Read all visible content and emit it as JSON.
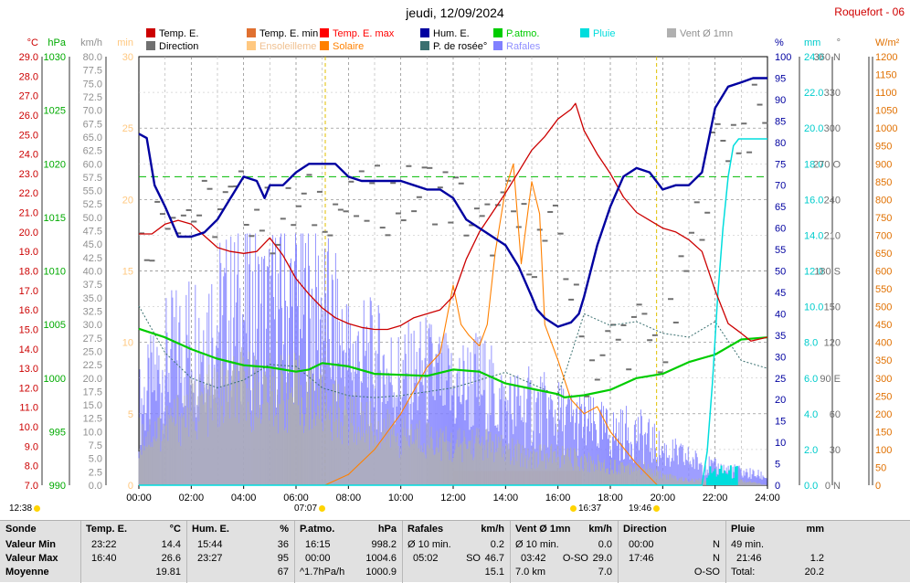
{
  "header": {
    "title": "jeudi, 12/09/2024",
    "station": "Roquefort - 06"
  },
  "legend": [
    {
      "label": "Temp. E.",
      "color": "#cc0000"
    },
    {
      "label": "Temp. E. min",
      "color": "#e07030"
    },
    {
      "label": "Temp. E. max",
      "color": "#ff0000"
    },
    {
      "label": "Hum. E.",
      "color": "#0000a0"
    },
    {
      "label": "P.atmo.",
      "color": "#00cc00"
    },
    {
      "label": "Pluie",
      "color": "#00dddd"
    },
    {
      "label": "Vent Ø 1mn",
      "color": "#b0b0b0"
    },
    {
      "label": "Direction",
      "color": "#707070"
    },
    {
      "label": "Ensoleilleme",
      "color": "#ffc880"
    },
    {
      "label": "Solaire",
      "color": "#ff8000"
    },
    {
      "label": "P. de rosée°",
      "color": "#3a7070"
    },
    {
      "label": "Rafales",
      "color": "#8080ff"
    }
  ],
  "sun_markers": {
    "left": "12:38",
    "sunrise": "07:07",
    "noon": "16:37",
    "sunset": "19:46"
  },
  "chart_data": {
    "type": "line",
    "x_unit": "time of day",
    "x_ticks": [
      "00:00",
      "02:00",
      "04:00",
      "06:00",
      "08:00",
      "10:00",
      "12:00",
      "14:00",
      "16:00",
      "18:00",
      "20:00",
      "22:00",
      "24:00"
    ],
    "axes": [
      {
        "unit": "°C",
        "range": [
          7.0,
          29.0
        ],
        "ticks": [
          "7.0",
          "8.0",
          "9.0",
          "10.0",
          "11.0",
          "12.0",
          "13.0",
          "14.0",
          "15.0",
          "16.0",
          "17.0",
          "18.0",
          "19.0",
          "20.0",
          "21.0",
          "22.0",
          "23.0",
          "24.0",
          "25.0",
          "26.0",
          "27.0",
          "28.0",
          "29.0"
        ],
        "color": "#cc0000"
      },
      {
        "unit": "hPa",
        "range": [
          990,
          1030
        ],
        "ticks": [
          "990",
          "995",
          "1000",
          "1005",
          "1010",
          "1015",
          "1020",
          "1025",
          "1030"
        ],
        "color": "#00aa00"
      },
      {
        "unit": "km/h",
        "range": [
          0,
          80
        ],
        "ticks": [
          "0.0",
          "2.5",
          "5.0",
          "7.5",
          "10.0",
          "12.5",
          "15.0",
          "17.5",
          "20.0",
          "22.5",
          "25.0",
          "27.5",
          "30.0",
          "32.5",
          "35.0",
          "37.5",
          "40.0",
          "42.5",
          "45.0",
          "47.5",
          "50.0",
          "52.5",
          "55.0",
          "57.5",
          "60.0",
          "62.5",
          "65.0",
          "67.5",
          "70.0",
          "72.5",
          "75.0",
          "77.5",
          "80.0"
        ],
        "color": "#909090"
      },
      {
        "unit": "min",
        "range": [
          0,
          30
        ],
        "ticks": [
          "0",
          "5",
          "10",
          "15",
          "20",
          "25",
          "30"
        ],
        "color": "#ffc880"
      },
      {
        "unit": "%",
        "range": [
          0,
          100
        ],
        "ticks": [
          "0",
          "5",
          "10",
          "15",
          "20",
          "25",
          "30",
          "35",
          "40",
          "45",
          "50",
          "55",
          "60",
          "65",
          "70",
          "75",
          "80",
          "85",
          "90",
          "95",
          "100"
        ],
        "color": "#0000a0"
      },
      {
        "unit": "mm",
        "range": [
          0,
          25
        ],
        "ticks": [
          "0.0",
          "2.0",
          "4.0",
          "6.0",
          "8.0",
          "10.0",
          "12.0",
          "14.0",
          "16.0",
          "18.0",
          "20.0",
          "22.0",
          "24.0"
        ],
        "color": "#00cccc"
      },
      {
        "unit": "°",
        "range": [
          0,
          360
        ],
        "ticks": [
          "0 N",
          "30",
          "60",
          "90 E",
          "120",
          "150",
          "180 S",
          "210",
          "240",
          "270 O",
          "300",
          "330",
          "360 N"
        ],
        "color": "#707070"
      },
      {
        "unit": "W/m²",
        "range": [
          0,
          1200
        ],
        "ticks": [
          "0",
          "50",
          "100",
          "150",
          "200",
          "250",
          "300",
          "350",
          "400",
          "450",
          "500",
          "550",
          "600",
          "650",
          "700",
          "750",
          "800",
          "850",
          "900",
          "950",
          "1000",
          "1050",
          "1100",
          "1150",
          "1200"
        ],
        "color": "#e07000"
      }
    ],
    "series": [
      {
        "name": "Temp. E.",
        "axis": "°C",
        "color": "#cc0000",
        "x": [
          0,
          0.5,
          1,
          1.5,
          2,
          2.5,
          3,
          3.5,
          4,
          4.5,
          5,
          5.5,
          6,
          6.5,
          7,
          7.5,
          8,
          8.5,
          9,
          9.5,
          10,
          10.5,
          11,
          11.5,
          12,
          12.5,
          13,
          13.5,
          14,
          14.5,
          15,
          15.5,
          16,
          16.5,
          16.67,
          17,
          17.5,
          18,
          18.5,
          19,
          19.5,
          20,
          20.5,
          21,
          21.5,
          22,
          22.5,
          23,
          23.37,
          24
        ],
        "y": [
          19.9,
          19.9,
          20.4,
          20.6,
          20.4,
          19.8,
          19.2,
          19.0,
          18.9,
          19.0,
          19.7,
          18.8,
          17.6,
          16.8,
          16.1,
          15.6,
          15.3,
          15.1,
          15.0,
          15.0,
          15.2,
          15.6,
          15.8,
          16.0,
          16.7,
          18.6,
          20.0,
          21.0,
          22.0,
          23.1,
          24.2,
          24.9,
          25.8,
          26.3,
          26.6,
          25.2,
          24.0,
          23.0,
          21.8,
          21.0,
          20.6,
          20.2,
          20.0,
          19.6,
          19.0,
          17.0,
          15.3,
          14.8,
          14.4,
          14.6
        ]
      },
      {
        "name": "Hum. E.",
        "axis": "%",
        "color": "#0000a0",
        "x": [
          0,
          0.3,
          0.6,
          1,
          1.5,
          1.7,
          2,
          2.5,
          3,
          3.5,
          4,
          4.5,
          4.8,
          5,
          5.5,
          6,
          6.5,
          7,
          7.5,
          8,
          8.5,
          9,
          9.5,
          10,
          10.5,
          11,
          11.5,
          12,
          12.5,
          13,
          13.5,
          14,
          14.5,
          15,
          15.2,
          15.5,
          16,
          16.5,
          16.8,
          17,
          17.5,
          18,
          18.5,
          19,
          19.5,
          20,
          20.5,
          21,
          21.5,
          22,
          22.5,
          23,
          23.45,
          24
        ],
        "y": [
          82,
          81,
          70,
          65,
          58,
          58,
          58,
          59,
          62,
          67,
          72,
          71,
          67,
          70,
          70,
          73,
          75,
          75,
          75,
          72,
          71,
          71,
          71,
          71,
          70,
          69,
          69,
          67,
          62,
          60,
          58,
          56,
          51,
          44,
          41,
          39,
          37,
          38,
          40,
          44,
          56,
          65,
          72,
          74,
          73,
          69,
          70,
          70,
          73,
          88,
          93,
          94,
          95,
          95
        ]
      },
      {
        "name": "P.atmo.",
        "axis": "hPa",
        "color": "#00cc00",
        "x": [
          0,
          1,
          2,
          3,
          4,
          5,
          6,
          6.5,
          7,
          8,
          9,
          10,
          11,
          12,
          13,
          14,
          15,
          16,
          16.25,
          17,
          18,
          19,
          20,
          21,
          22,
          23,
          24
        ],
        "y": [
          1004.6,
          1003.8,
          1002.7,
          1001.8,
          1001.2,
          1001.0,
          1000.6,
          1000.8,
          1001.4,
          1001.1,
          1000.4,
          1000.3,
          1000.2,
          1000.8,
          1000.6,
          999.5,
          999.0,
          998.5,
          998.2,
          998.4,
          998.9,
          1000.0,
          1000.4,
          1001.5,
          1002.2,
          1003.6,
          1003.8
        ]
      },
      {
        "name": "Pluie",
        "axis": "mm",
        "color": "#00dddd",
        "x": [
          0,
          21.5,
          21.7,
          21.9,
          22.1,
          22.3,
          22.5,
          22.7,
          22.9,
          23.5,
          24
        ],
        "y": [
          0,
          0,
          2,
          6,
          11,
          15,
          18,
          19.8,
          20.2,
          20.2,
          20.2
        ]
      },
      {
        "name": "Solaire",
        "axis": "W/m²",
        "color": "#ff8000",
        "x": [
          7.1,
          8,
          9,
          10,
          11,
          11.5,
          12,
          12.3,
          12.6,
          13,
          13.3,
          13.6,
          14,
          14.3,
          14.6,
          15,
          15.3,
          15.5,
          16,
          16.5,
          17,
          17.5,
          18,
          19,
          19.8
        ],
        "y": [
          0,
          30,
          100,
          200,
          330,
          370,
          560,
          450,
          420,
          390,
          450,
          650,
          830,
          900,
          620,
          850,
          760,
          450,
          350,
          240,
          200,
          220,
          150,
          60,
          0
        ]
      },
      {
        "name": "P. de rosée°",
        "axis": "°C",
        "color": "#3a7070",
        "x": [
          0,
          1,
          2,
          3,
          4,
          5,
          6,
          7,
          8,
          9,
          10,
          11,
          12,
          13,
          14,
          15,
          16,
          17,
          18,
          19,
          20,
          21,
          22,
          23,
          24
        ],
        "y": [
          16.2,
          13.8,
          12.5,
          12.0,
          12.4,
          13.2,
          13.1,
          12.0,
          11.6,
          11.5,
          11.6,
          11.8,
          12.0,
          12.4,
          12.8,
          12.2,
          11.6,
          15.8,
          15.2,
          15.4,
          14.8,
          14.6,
          15.4,
          13.4,
          13.0
        ]
      },
      {
        "name": "Rafales",
        "axis": "km/h",
        "color": "#8080ff",
        "x": [
          0,
          1,
          2,
          3,
          4,
          5,
          6,
          7,
          8,
          9,
          10,
          11,
          12,
          13,
          14,
          15,
          16,
          17,
          18,
          19,
          20,
          21,
          22,
          23,
          24
        ],
        "y": [
          18,
          28,
          34,
          38,
          40,
          39,
          42,
          40,
          30,
          28,
          24,
          26,
          22,
          24,
          18,
          18,
          16,
          14,
          12,
          12,
          8,
          6,
          4,
          3,
          2
        ]
      },
      {
        "name": "Vent Ø 1mn",
        "axis": "km/h",
        "color": "#b0b0b0",
        "x": [
          0,
          1,
          2,
          3,
          4,
          5,
          6,
          7,
          8,
          9,
          10,
          11,
          12,
          13,
          14,
          15,
          16,
          17,
          18,
          19,
          20,
          21,
          22,
          23,
          24
        ],
        "y": [
          10,
          12,
          16,
          18,
          20,
          19,
          19,
          17,
          14,
          12,
          10,
          10,
          8,
          9,
          7,
          6,
          6,
          5,
          4,
          4,
          2,
          1,
          1,
          1,
          0
        ]
      },
      {
        "name": "Direction",
        "axis": "°",
        "color": "#707070",
        "x": [
          0,
          1,
          2,
          3,
          4,
          5,
          6,
          7,
          8,
          9,
          10,
          11,
          12,
          13,
          14,
          15,
          16,
          17,
          18,
          19,
          20,
          21,
          22,
          23,
          24
        ],
        "y": [
          200,
          240,
          230,
          230,
          240,
          220,
          230,
          240,
          230,
          240,
          240,
          250,
          240,
          210,
          230,
          200,
          210,
          100,
          120,
          130,
          110,
          200,
          290,
          300,
          320
        ]
      },
      {
        "name": "Ensoleilleme",
        "axis": "min",
        "color": "#ffc880",
        "x": [
          12,
          16.9
        ],
        "y": [
          1,
          1
        ]
      }
    ]
  },
  "summary": {
    "columns": [
      {
        "title": "Sonde",
        "unit": "",
        "rows": [
          "Valeur Min",
          "Valeur Max",
          "Moyenne"
        ]
      },
      {
        "title": "Temp. E.",
        "unit": "°C",
        "times": [
          "23:22",
          "16:40",
          ""
        ],
        "values": [
          "14.4",
          "26.6",
          "19.81"
        ]
      },
      {
        "title": "Hum. E.",
        "unit": "%",
        "times": [
          "15:44",
          "23:27",
          ""
        ],
        "values": [
          "36",
          "95",
          "67"
        ]
      },
      {
        "title": "P.atmo.",
        "unit": "hPa",
        "times": [
          "16:15",
          "00:00",
          "^1.7hPa/h"
        ],
        "values": [
          "998.2",
          "1004.6",
          "1000.9"
        ]
      },
      {
        "title": "Rafales",
        "unit": "km/h",
        "times": [
          "Ø 10 min.",
          "05:02",
          ""
        ],
        "mid": [
          "",
          "SO",
          ""
        ],
        "values": [
          "0.2",
          "46.7",
          "15.1"
        ]
      },
      {
        "title": "Vent Ø 1mn",
        "unit": "km/h",
        "times": [
          "Ø 10 min.",
          "03:42",
          "7.0 km"
        ],
        "mid": [
          "",
          "O-SO",
          ""
        ],
        "values": [
          "0.0",
          "29.0",
          "7.0"
        ]
      },
      {
        "title": "Direction",
        "unit": "",
        "times": [
          "00:00",
          "17:46",
          ""
        ],
        "values": [
          "N",
          "N",
          "O-SO"
        ]
      },
      {
        "title": "Pluie",
        "unit": "mm",
        "times": [
          "49 min.",
          "21:46",
          "Total:"
        ],
        "values": [
          "",
          "1.2",
          "20.2"
        ]
      }
    ]
  }
}
